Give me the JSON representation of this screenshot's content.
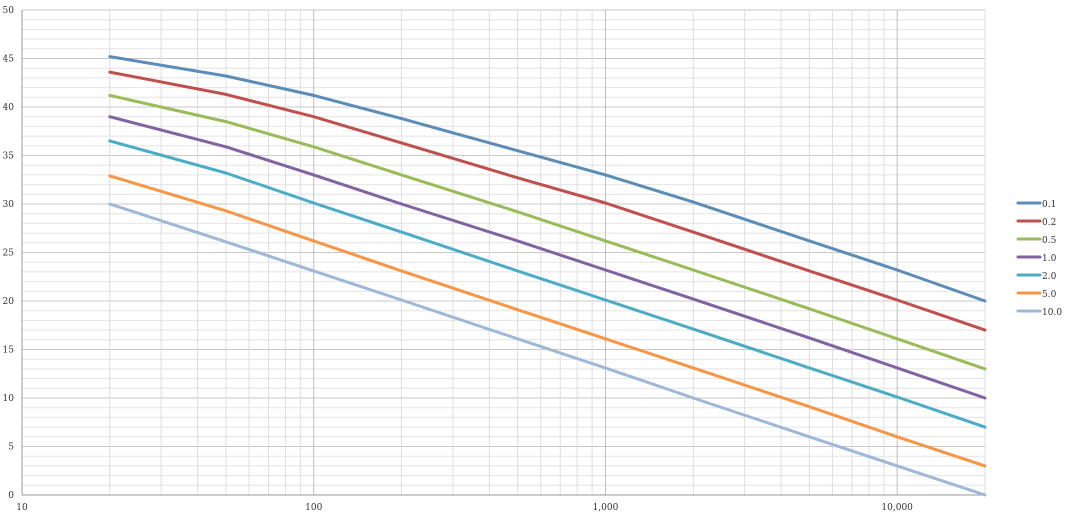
{
  "chart_data": {
    "type": "line",
    "title": "",
    "xlabel": "",
    "ylabel": "",
    "x_scale": "log",
    "xlim": [
      10,
      20000
    ],
    "ylim": [
      0,
      50
    ],
    "grid": true,
    "legend_placement": "right",
    "x_tick_labels": [
      {
        "value": 10,
        "label": "10"
      },
      {
        "value": 100,
        "label": "100"
      },
      {
        "value": 1000,
        "label": "1,000"
      },
      {
        "value": 10000,
        "label": "10,000"
      }
    ],
    "y_tick_labels": [
      {
        "value": 0,
        "label": "0"
      },
      {
        "value": 5,
        "label": "5"
      },
      {
        "value": 10,
        "label": "10"
      },
      {
        "value": 15,
        "label": "15"
      },
      {
        "value": 20,
        "label": "20"
      },
      {
        "value": 25,
        "label": "25"
      },
      {
        "value": 30,
        "label": "30"
      },
      {
        "value": 35,
        "label": "35"
      },
      {
        "value": 40,
        "label": "40"
      },
      {
        "value": 45,
        "label": "45"
      },
      {
        "value": 50,
        "label": "50"
      }
    ],
    "series": [
      {
        "name": "0.1",
        "color": "#5b8db8",
        "x": [
          20,
          50,
          100,
          200,
          500,
          1000,
          2000,
          5000,
          10000,
          20000
        ],
        "y": [
          45.2,
          43.2,
          41.2,
          38.8,
          35.5,
          33.0,
          30.2,
          26.2,
          23.2,
          20.0
        ]
      },
      {
        "name": "0.2",
        "color": "#c0504d",
        "x": [
          20,
          50,
          100,
          200,
          500,
          1000,
          2000,
          5000,
          10000,
          20000
        ],
        "y": [
          43.6,
          41.3,
          39.0,
          36.3,
          32.7,
          30.1,
          27.1,
          23.1,
          20.1,
          17.0
        ]
      },
      {
        "name": "0.5",
        "color": "#9bbb59",
        "x": [
          20,
          50,
          100,
          200,
          500,
          1000,
          2000,
          5000,
          10000,
          20000
        ],
        "y": [
          41.2,
          38.5,
          35.9,
          33.0,
          29.2,
          26.2,
          23.2,
          19.2,
          16.1,
          13.0
        ]
      },
      {
        "name": "1.0",
        "color": "#8064a2",
        "x": [
          20,
          50,
          100,
          200,
          500,
          1000,
          2000,
          5000,
          10000,
          20000
        ],
        "y": [
          39.0,
          35.9,
          33.0,
          30.0,
          26.2,
          23.2,
          20.2,
          16.2,
          13.1,
          10.0
        ]
      },
      {
        "name": "2.0",
        "color": "#4bacc6",
        "x": [
          20,
          50,
          100,
          200,
          500,
          1000,
          2000,
          5000,
          10000,
          20000
        ],
        "y": [
          36.5,
          33.2,
          30.1,
          27.1,
          23.1,
          20.1,
          17.1,
          13.1,
          10.1,
          7.0
        ]
      },
      {
        "name": "5.0",
        "color": "#f79646",
        "x": [
          20,
          50,
          100,
          200,
          500,
          1000,
          2000,
          5000,
          10000,
          20000
        ],
        "y": [
          32.9,
          29.3,
          26.2,
          23.1,
          19.1,
          16.1,
          13.1,
          9.1,
          6.0,
          3.0
        ]
      },
      {
        "name": "10.0",
        "color": "#9fb8d8",
        "x": [
          20,
          50,
          100,
          200,
          500,
          1000,
          2000,
          5000,
          10000,
          20000
        ],
        "y": [
          30.0,
          26.1,
          23.1,
          20.1,
          16.1,
          13.1,
          10.0,
          6.0,
          3.0,
          0.0
        ]
      }
    ]
  }
}
